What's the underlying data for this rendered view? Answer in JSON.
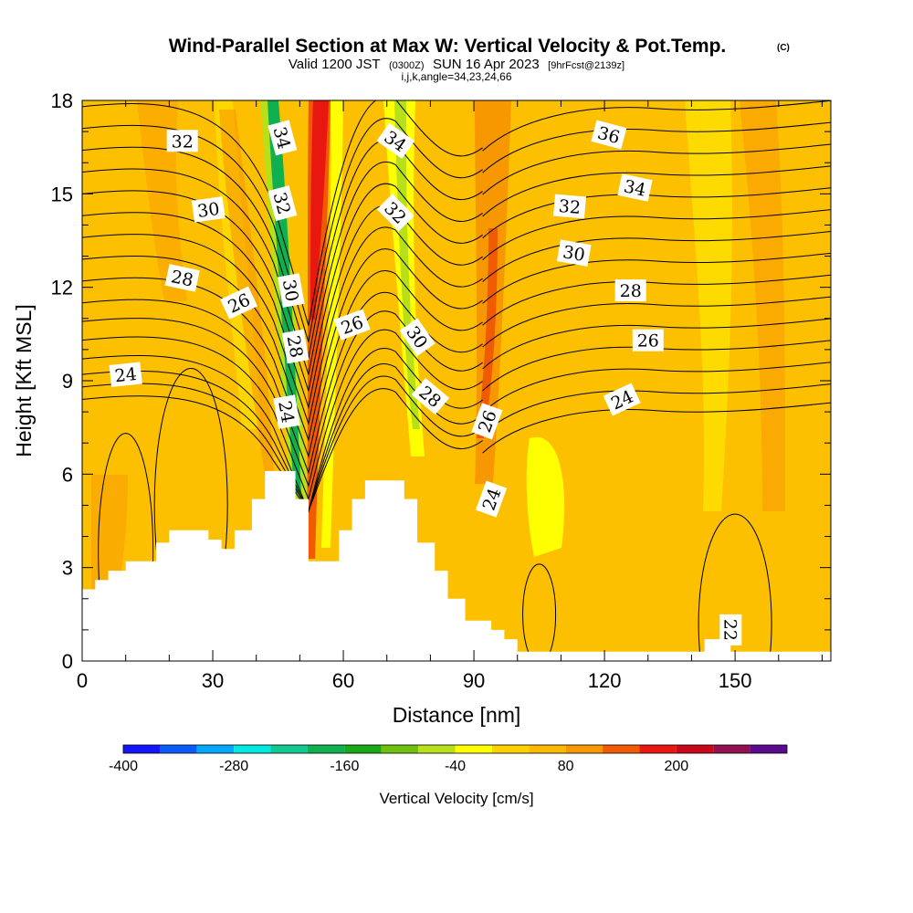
{
  "title": {
    "main": "Wind-Parallel Section at Max W: Vertical Velocity & Pot.Temp.",
    "mark": "(C)",
    "valid_prefix": "Valid 1200 JST",
    "valid_utc": "(0300Z)",
    "valid_date": "SUN 16 Apr 2023",
    "forecast_info": "[9hrFcst@2139z]",
    "grid_info": "i,j,k,angle=34,23,24,66"
  },
  "colors": {
    "background_field": "#fdc000",
    "terrain": "#ffffff",
    "contour": "#000000"
  },
  "chart_data": {
    "type": "heatmap",
    "xlabel": "Distance [nm]",
    "ylabel": "Height [Kft MSL]",
    "xlim": [
      0,
      172
    ],
    "ylim": [
      0,
      18
    ],
    "x_ticks": [
      0,
      30,
      60,
      90,
      120,
      150
    ],
    "y_ticks": [
      0,
      3,
      6,
      9,
      12,
      15,
      18
    ],
    "colorbar": {
      "label": "Vertical Velocity [cm/s]",
      "tick_values": [
        -400,
        -280,
        -160,
        -40,
        80,
        200
      ],
      "tick_labels": [
        "-400",
        "-280",
        "-160",
        "-40",
        "80",
        "200"
      ],
      "bounds": [
        -400,
        -360,
        -320,
        -280,
        -240,
        -200,
        -160,
        -120,
        -80,
        -40,
        0,
        40,
        80,
        120,
        160,
        200,
        240,
        280
      ],
      "colors": [
        "#1414ff",
        "#0a5cff",
        "#00a8ff",
        "#00e8e0",
        "#10c890",
        "#10b050",
        "#18a818",
        "#70c010",
        "#b8e018",
        "#ffff00",
        "#fdd000",
        "#fdb800",
        "#f89800",
        "#f05a00",
        "#e81810",
        "#c80818",
        "#901050",
        "#5a0a8c"
      ]
    },
    "terrain_profile": [
      [
        0,
        2.3
      ],
      [
        3,
        2.3
      ],
      [
        3,
        2.6
      ],
      [
        6,
        2.6
      ],
      [
        6,
        2.9
      ],
      [
        10,
        2.9
      ],
      [
        10,
        3.2
      ],
      [
        17,
        3.2
      ],
      [
        17,
        3.8
      ],
      [
        20,
        3.8
      ],
      [
        20,
        4.2
      ],
      [
        29,
        4.2
      ],
      [
        29,
        3.9
      ],
      [
        32,
        3.9
      ],
      [
        32,
        3.6
      ],
      [
        35,
        3.6
      ],
      [
        35,
        4.2
      ],
      [
        39,
        4.2
      ],
      [
        39,
        5.2
      ],
      [
        42,
        5.2
      ],
      [
        42,
        6.1
      ],
      [
        49,
        6.1
      ],
      [
        49,
        5.2
      ],
      [
        52,
        5.2
      ],
      [
        52,
        3.2
      ],
      [
        59,
        3.2
      ],
      [
        59,
        4.2
      ],
      [
        62,
        4.2
      ],
      [
        62,
        5.2
      ],
      [
        65,
        5.2
      ],
      [
        65,
        5.8
      ],
      [
        74,
        5.8
      ],
      [
        74,
        5.2
      ],
      [
        77,
        5.2
      ],
      [
        77,
        3.8
      ],
      [
        81,
        3.8
      ],
      [
        81,
        2.9
      ],
      [
        84,
        2.9
      ],
      [
        84,
        2.0
      ],
      [
        88,
        2.0
      ],
      [
        88,
        1.3
      ],
      [
        94,
        1.3
      ],
      [
        94,
        1.0
      ],
      [
        97,
        1.0
      ],
      [
        97,
        0.7
      ],
      [
        100,
        0.7
      ],
      [
        100,
        0.3
      ],
      [
        143,
        0.3
      ],
      [
        143,
        0.7
      ],
      [
        149,
        0.7
      ],
      [
        149,
        0.3
      ],
      [
        172,
        0.3
      ]
    ],
    "contour_labels": [
      {
        "text": "32",
        "x": 23,
        "y": 16.7,
        "angle": 0
      },
      {
        "text": "30",
        "x": 29,
        "y": 14.5,
        "angle": -8
      },
      {
        "text": "28",
        "x": 23,
        "y": 12.3,
        "angle": 12
      },
      {
        "text": "26",
        "x": 36,
        "y": 11.5,
        "angle": -25
      },
      {
        "text": "24",
        "x": 10,
        "y": 9.2,
        "angle": -6
      },
      {
        "text": "34",
        "x": 46,
        "y": 16.8,
        "angle": 75
      },
      {
        "text": "32",
        "x": 46,
        "y": 14.7,
        "angle": 75
      },
      {
        "text": "30",
        "x": 48,
        "y": 11.9,
        "angle": 80
      },
      {
        "text": "28",
        "x": 49,
        "y": 10.1,
        "angle": 80
      },
      {
        "text": "24",
        "x": 47,
        "y": 8.0,
        "angle": 80
      },
      {
        "text": "26",
        "x": 62,
        "y": 10.8,
        "angle": -20
      },
      {
        "text": "34",
        "x": 72,
        "y": 16.7,
        "angle": 35
      },
      {
        "text": "32",
        "x": 72,
        "y": 14.4,
        "angle": 45
      },
      {
        "text": "30",
        "x": 77,
        "y": 10.4,
        "angle": 55
      },
      {
        "text": "28",
        "x": 80,
        "y": 8.5,
        "angle": 40
      },
      {
        "text": "26",
        "x": 93,
        "y": 7.7,
        "angle": -70
      },
      {
        "text": "24",
        "x": 94,
        "y": 5.2,
        "angle": -70
      },
      {
        "text": "36",
        "x": 121,
        "y": 16.9,
        "angle": 15
      },
      {
        "text": "34",
        "x": 127,
        "y": 15.2,
        "angle": 12
      },
      {
        "text": "32",
        "x": 112,
        "y": 14.6,
        "angle": 5
      },
      {
        "text": "30",
        "x": 113,
        "y": 13.1,
        "angle": 10
      },
      {
        "text": "28",
        "x": 126,
        "y": 11.9,
        "angle": 0
      },
      {
        "text": "26",
        "x": 130,
        "y": 10.3,
        "angle": 0
      },
      {
        "text": "24",
        "x": 124,
        "y": 8.4,
        "angle": -25
      },
      {
        "text": "22",
        "x": 149,
        "y": 1.0,
        "angle": 90
      }
    ]
  }
}
